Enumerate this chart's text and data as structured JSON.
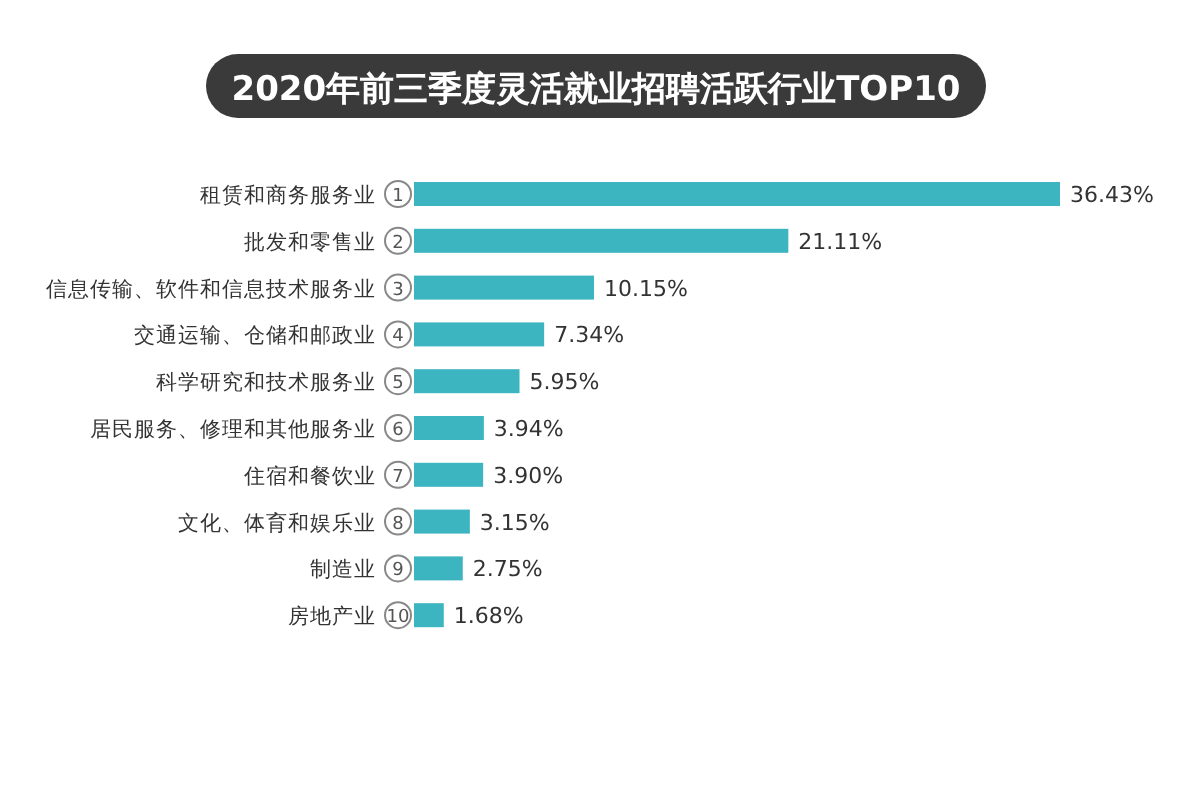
{
  "chart_data": {
    "type": "bar",
    "orientation": "horizontal",
    "data_labels": true,
    "title": "2020年前三季度灵活就业招聘活跃行业TOP10",
    "categories": [
      "租赁和商务服务业",
      "批发和零售业",
      "信息传输、软件和信息技术服务业",
      "交通运输、仓储和邮政业",
      "科学研究和技术服务业",
      "居民服务、修理和其他服务业",
      "住宿和餐饮业",
      "文化、体育和娱乐业",
      "制造业",
      "房地产业"
    ],
    "values": [
      36.43,
      21.11,
      10.15,
      7.34,
      5.95,
      3.94,
      3.9,
      3.15,
      2.75,
      1.68
    ],
    "value_labels": [
      "36.43%",
      "21.11%",
      "10.15%",
      "7.34%",
      "5.95%",
      "3.94%",
      "3.90%",
      "3.15%",
      "2.75%",
      "1.68%"
    ],
    "color": "#3db5c0",
    "annotations": [
      {
        "text": "1",
        "y": "租赁和商务服务业"
      },
      {
        "text": "2",
        "y": "批发和零售业"
      },
      {
        "text": "3",
        "y": "信息传输、软件和信息技术服务业"
      },
      {
        "text": "4",
        "y": "交通运输、仓储和邮政业"
      },
      {
        "text": "5",
        "y": "科学研究和技术服务业"
      },
      {
        "text": "6",
        "y": "居民服务、修理和其他服务业"
      },
      {
        "text": "7",
        "y": "住宿和餐饮业"
      },
      {
        "text": "8",
        "y": "文化、体育和娱乐业"
      },
      {
        "text": "9",
        "y": "制造业"
      },
      {
        "text": "10",
        "y": "房地产业"
      }
    ]
  }
}
